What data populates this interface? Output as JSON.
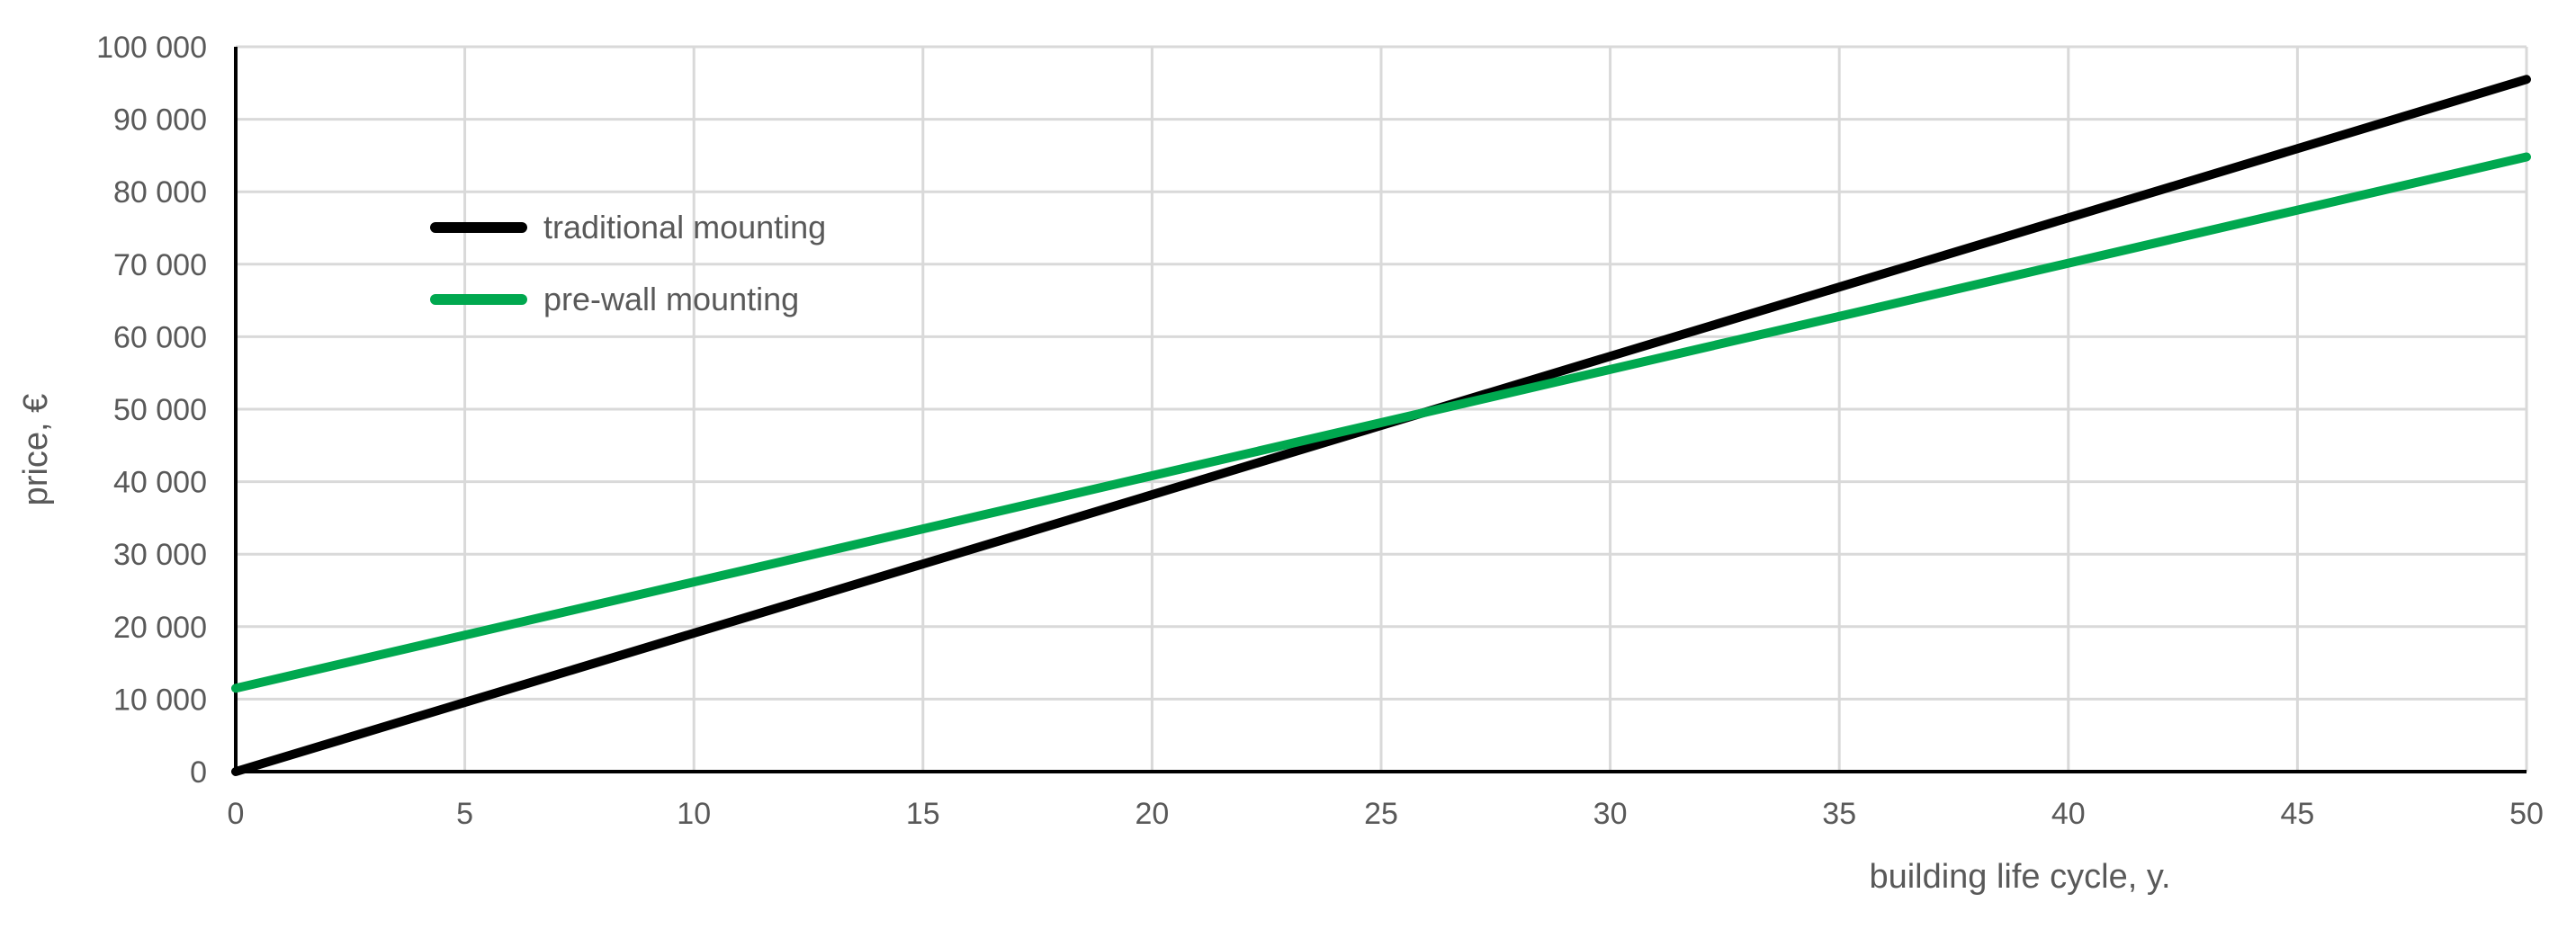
{
  "chart_data": {
    "type": "line",
    "title": "",
    "xlabel": "building life cycle, y.",
    "ylabel": "price, €",
    "xlim": [
      0,
      50
    ],
    "ylim": [
      0,
      100000
    ],
    "x_ticks": [
      0,
      5,
      10,
      15,
      20,
      25,
      30,
      35,
      40,
      45,
      50
    ],
    "x_tick_labels": [
      "0",
      "5",
      "10",
      "15",
      "20",
      "25",
      "30",
      "35",
      "40",
      "45",
      "50"
    ],
    "y_ticks": [
      0,
      10000,
      20000,
      30000,
      40000,
      50000,
      60000,
      70000,
      80000,
      90000,
      100000
    ],
    "y_tick_labels": [
      "0",
      "10 000",
      "20 000",
      "30 000",
      "40 000",
      "50 000",
      "60 000",
      "70 000",
      "80 000",
      "90 000",
      "100 000"
    ],
    "grid": true,
    "legend_position": "top-left",
    "series": [
      {
        "name": "traditional mounting",
        "color": "#000000",
        "x": [
          0,
          50
        ],
        "y": [
          0,
          95500
        ]
      },
      {
        "name": "pre-wall mounting",
        "color": "#00a84f",
        "x": [
          0,
          50
        ],
        "y": [
          11500,
          84800
        ]
      }
    ]
  }
}
